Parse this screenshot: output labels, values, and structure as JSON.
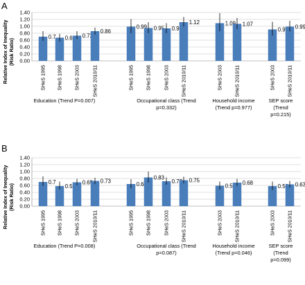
{
  "colors": {
    "bar": "#4a7ebb",
    "grid": "#c0c0c0",
    "axis": "#808080",
    "error": "#000000"
  },
  "chart_data": [
    {
      "type": "bar",
      "panel": "A",
      "ylabel": "Relative Index of Inequality (Risk Ratio)",
      "ylim": [
        0,
        1.4
      ],
      "yticks": [
        "0.00",
        "0.20",
        "0.40",
        "0.60",
        "0.80",
        "1.00",
        "1.20",
        "1.40"
      ],
      "grid": true,
      "groups": [
        {
          "label_lines": [
            "Education (Trend P=0.007)"
          ],
          "bars": [
            {
              "category": "SHeS 1995",
              "value": 0.7,
              "label": "0.7",
              "err_low": 0.58,
              "err_high": 0.86
            },
            {
              "category": "SHeS 1998",
              "value": 0.67,
              "label": "0.67",
              "err_low": 0.56,
              "err_high": 0.78
            },
            {
              "category": "SHeS 2003",
              "value": 0.73,
              "label": "0.73",
              "err_low": 0.63,
              "err_high": 0.86
            },
            {
              "category": "SHeS 2010/11",
              "value": 0.86,
              "label": "0.86",
              "err_low": 0.76,
              "err_high": 0.96
            }
          ]
        },
        {
          "label_lines": [
            "Occupational class (Trend",
            "p=0.332)"
          ],
          "bars": [
            {
              "category": "SHeS 1995",
              "value": 0.99,
              "label": "0.99",
              "err_low": 0.8,
              "err_high": 1.21
            },
            {
              "category": "SHeS 1998",
              "value": 0.95,
              "label": "0.95",
              "err_low": 0.8,
              "err_high": 1.12
            },
            {
              "category": "SHeS 2003",
              "value": 0.94,
              "label": "0.94",
              "err_low": 0.8,
              "err_high": 1.09
            },
            {
              "category": "SHeS 2010/11",
              "value": 1.12,
              "label": "1.12",
              "err_low": 0.99,
              "err_high": 1.27
            }
          ]
        },
        {
          "label_lines": [
            "Household income",
            "(Trend p=0.977)"
          ],
          "bars": [
            {
              "category": "SHeS 2003",
              "value": 1.09,
              "label": "1.09",
              "err_low": 0.86,
              "err_high": 1.38
            },
            {
              "category": "SHeS 2010/11",
              "value": 1.07,
              "label": "1.07",
              "err_low": 0.92,
              "err_high": 1.24
            }
          ]
        },
        {
          "label_lines": [
            "SEP score",
            "(Trend",
            "p=0.215)"
          ],
          "bars": [
            {
              "category": "SHeS 2003",
              "value": 0.91,
              "label": "0.91",
              "err_low": 0.73,
              "err_high": 1.13
            },
            {
              "category": "SHeS 2010/11",
              "value": 0.99,
              "label": "0.99",
              "err_low": 0.85,
              "err_high": 1.16
            }
          ]
        }
      ]
    },
    {
      "type": "bar",
      "panel": "B",
      "ylabel": "Relative Index of Inequality (Risk Ratio)",
      "ylim": [
        0,
        1.4
      ],
      "yticks": [
        "0.00",
        "0.20",
        "0.40",
        "0.60",
        "0.80",
        "1.00",
        "1.20",
        "1.40"
      ],
      "grid": true,
      "groups": [
        {
          "label_lines": [
            "Education (Trend P=0.008)"
          ],
          "bars": [
            {
              "category": "SHeS 1995",
              "value": 0.7,
              "label": "0.7",
              "err_low": 0.58,
              "err_high": 0.86
            },
            {
              "category": "SHeS 1998",
              "value": 0.58,
              "label": "0.58",
              "err_low": 0.48,
              "err_high": 0.71
            },
            {
              "category": "SHeS 2003",
              "value": 0.69,
              "label": "0.69",
              "err_low": 0.6,
              "err_high": 0.79
            },
            {
              "category": "SHeS 2010/11",
              "value": 0.73,
              "label": "0.73",
              "err_low": 0.64,
              "err_high": 0.82
            }
          ]
        },
        {
          "label_lines": [
            "Occupational class (Trend",
            "p=0.087)"
          ],
          "bars": [
            {
              "category": "SHeS 1995",
              "value": 0.64,
              "label": "0.64",
              "err_low": 0.52,
              "err_high": 0.78
            },
            {
              "category": "SHeS 1998",
              "value": 0.83,
              "label": "0.83",
              "err_low": 0.68,
              "err_high": 1.0
            },
            {
              "category": "SHeS 2003",
              "value": 0.72,
              "label": "0.72",
              "err_low": 0.62,
              "err_high": 0.83
            },
            {
              "category": "SHeS 2010/11",
              "value": 0.75,
              "label": "0.75",
              "err_low": 0.66,
              "err_high": 0.85
            }
          ]
        },
        {
          "label_lines": [
            "Household income",
            "(Trend p=0.046)"
          ],
          "bars": [
            {
              "category": "SHeS 2003",
              "value": 0.59,
              "label": "0.59",
              "err_low": 0.48,
              "err_high": 0.71
            },
            {
              "category": "SHeS 2010/11",
              "value": 0.68,
              "label": "0.68",
              "err_low": 0.58,
              "err_high": 0.79
            }
          ]
        },
        {
          "label_lines": [
            "SEP score",
            "(Trend",
            "p=0.099)"
          ],
          "bars": [
            {
              "category": "SHeS 2003",
              "value": 0.58,
              "label": "0.58",
              "err_low": 0.47,
              "err_high": 0.71
            },
            {
              "category": "SHeS 2010/11",
              "value": 0.63,
              "label": "0.63",
              "err_low": 0.54,
              "err_high": 0.73
            }
          ]
        }
      ]
    }
  ]
}
